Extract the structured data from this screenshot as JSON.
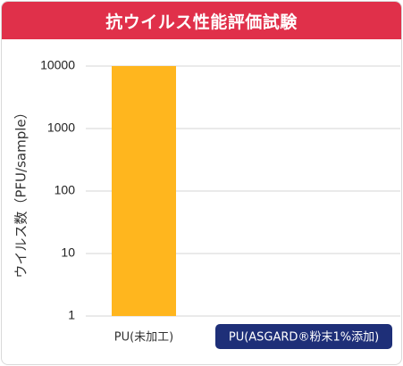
{
  "header": {
    "title": "抗ウイルス性能評価試験"
  },
  "colors": {
    "header_bg": "#e0304a",
    "bar": "#ffb61e",
    "highlight_badge": "#1e2f78",
    "grid": "#d4d4d4"
  },
  "chart_data": {
    "type": "bar",
    "title": "",
    "ylabel": "ウイルス数（PFU/sample）",
    "xlabel": "",
    "yscale": "log",
    "ylim": [
      1,
      10000
    ],
    "yticks": [
      1,
      10,
      100,
      1000,
      10000
    ],
    "ytick_labels": [
      "1",
      "10",
      "100",
      "1000",
      "10000"
    ],
    "grid": true,
    "categories": [
      "PU(未加工)",
      "PU(ASGARD®粉末1%添加)"
    ],
    "values": [
      10000,
      1
    ],
    "highlighted_category": "PU(ASGARD®粉末1%添加)"
  }
}
